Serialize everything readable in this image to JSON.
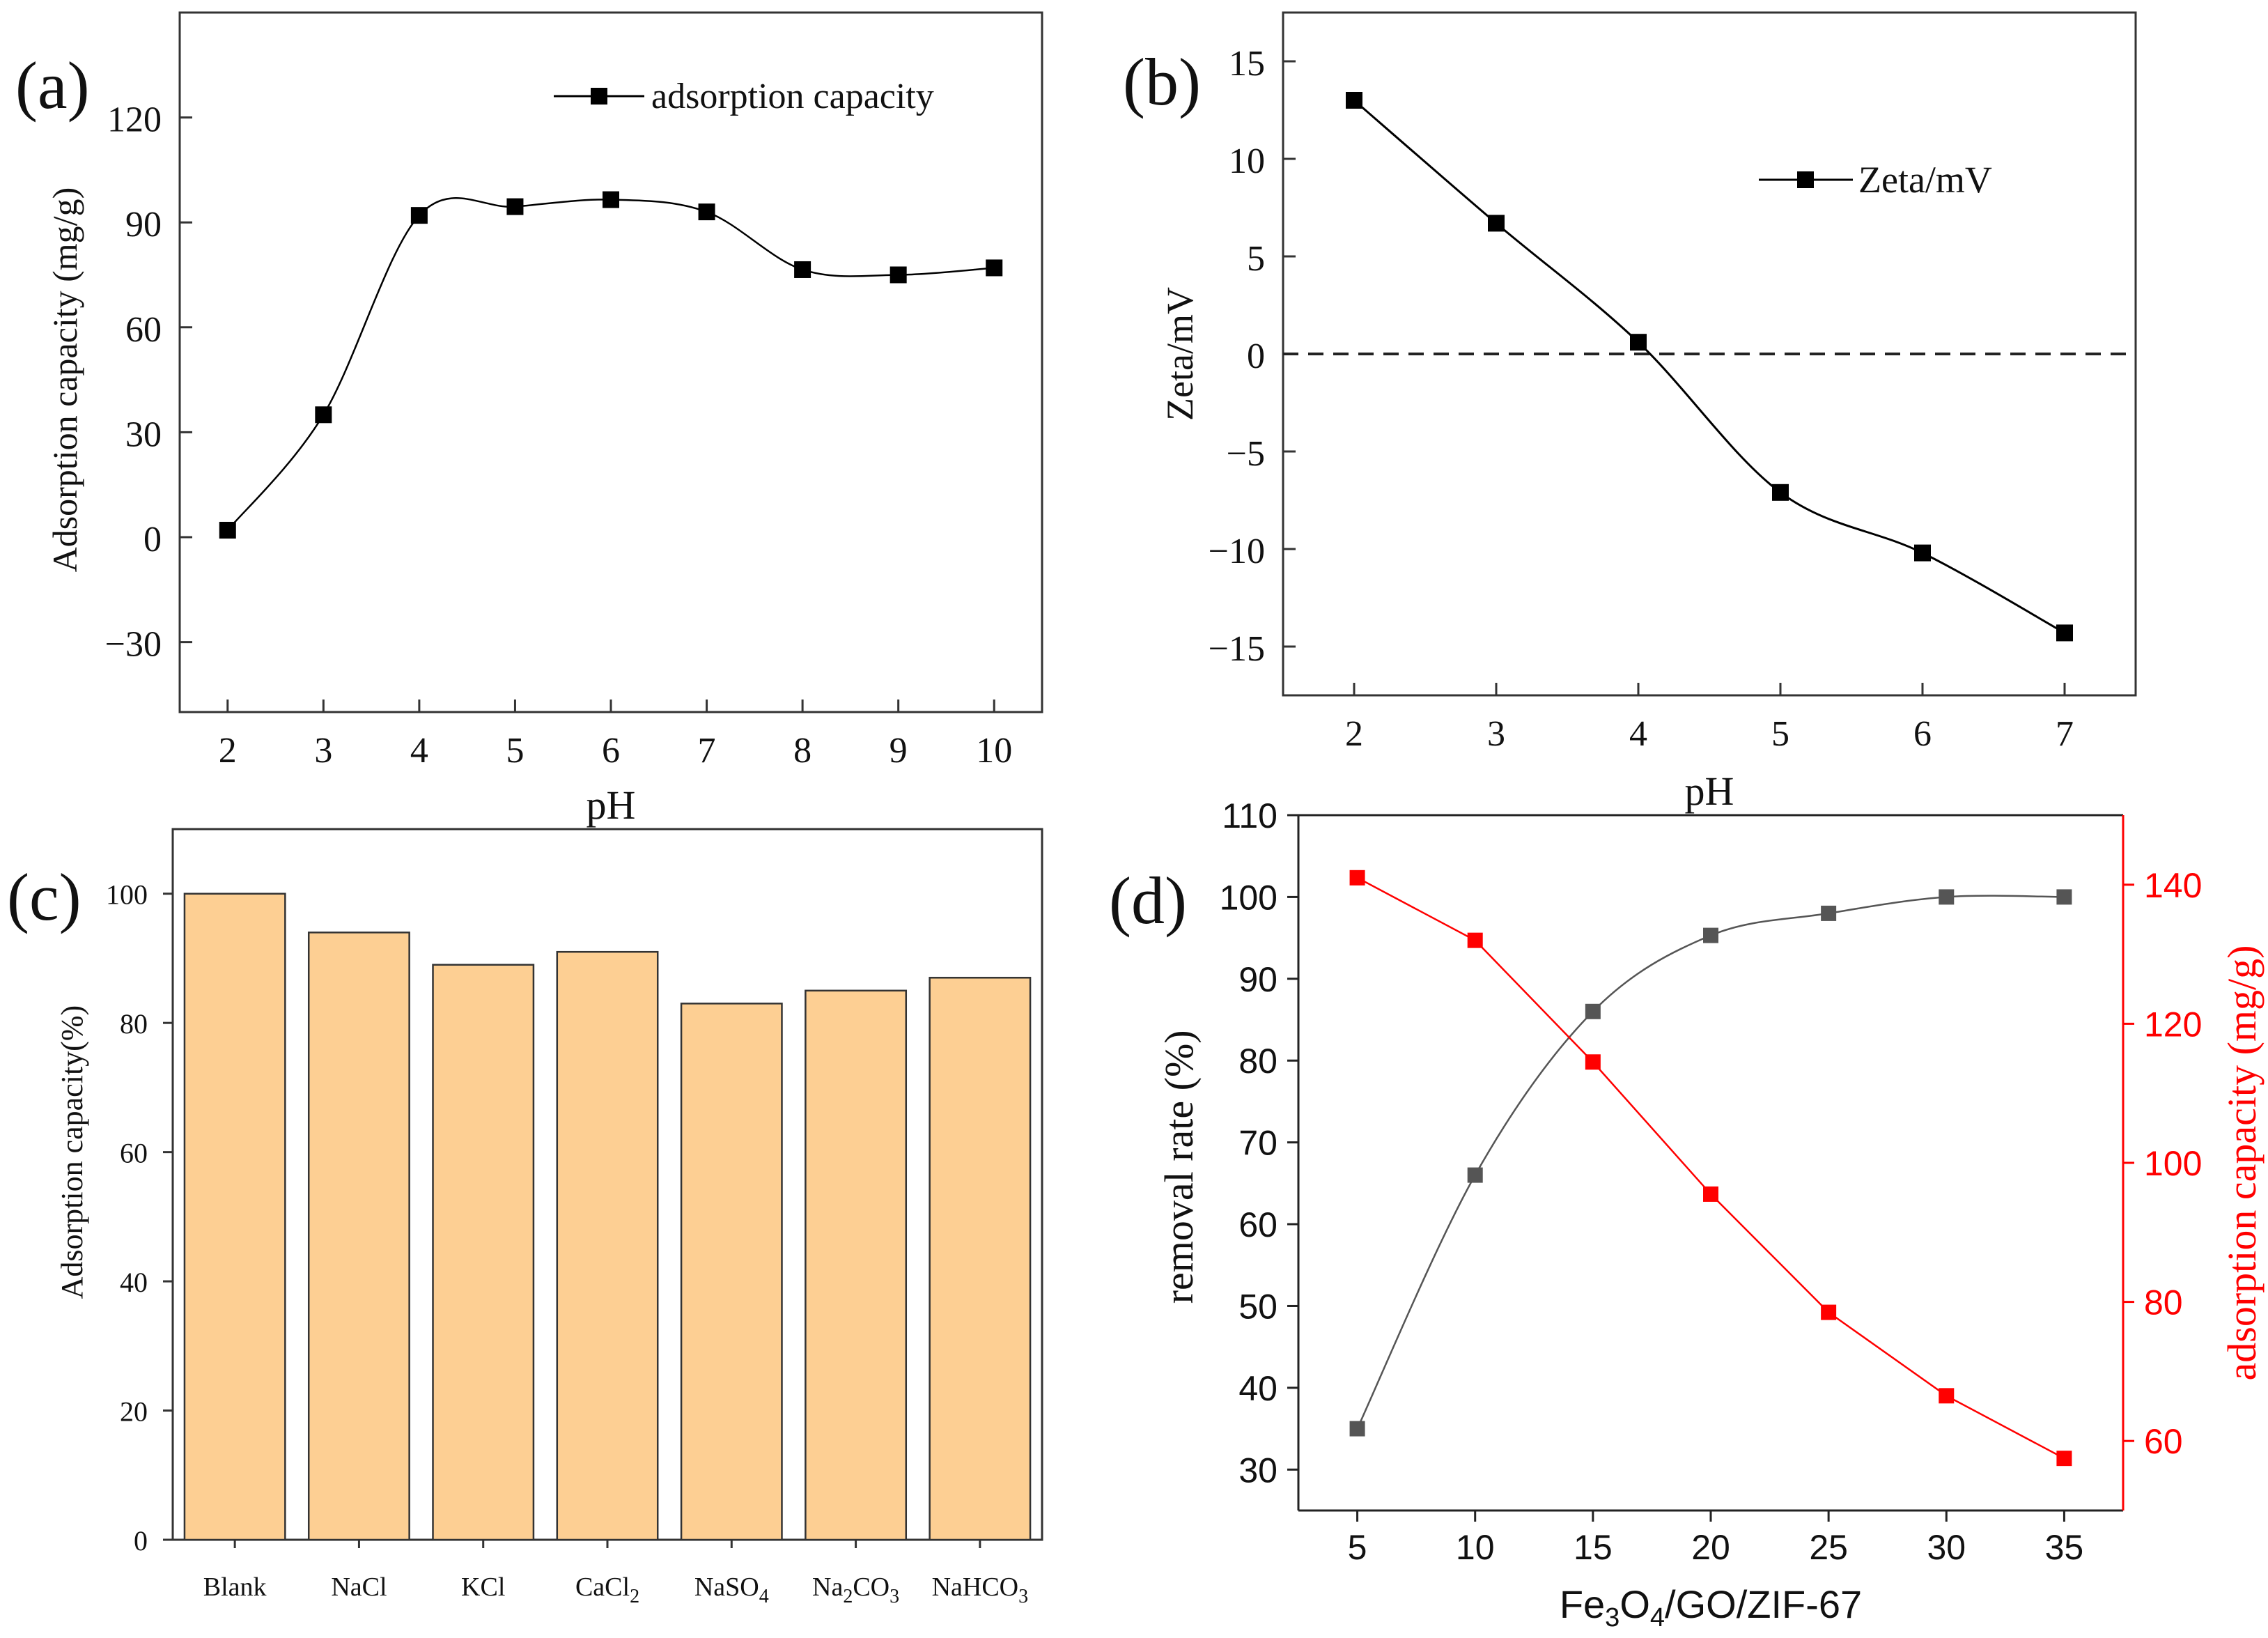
{
  "figure": {
    "panels": [
      "(a)",
      "(b)",
      "(c)",
      "(d)"
    ]
  },
  "chart_data": [
    {
      "id": "a",
      "type": "line",
      "panel_label": "(a)",
      "title": "",
      "xlabel": "pH",
      "ylabel": "Adsorption capacity (mg/g)",
      "x": [
        2,
        3,
        4,
        5,
        6,
        7,
        8,
        9,
        10
      ],
      "xticks": [
        "2",
        "3",
        "4",
        "5",
        "6",
        "7",
        "8",
        "9",
        "10"
      ],
      "ylim": [
        -50,
        150
      ],
      "yticks": [
        -30,
        0,
        30,
        60,
        90,
        120
      ],
      "series": [
        {
          "name": "adsorption capacity",
          "color": "#000000",
          "marker": "square",
          "values": [
            2,
            35,
            92,
            94.5,
            96.5,
            93,
            76.5,
            75,
            77
          ]
        }
      ],
      "legend": "top-right"
    },
    {
      "id": "b",
      "type": "line",
      "panel_label": "(b)",
      "title": "",
      "xlabel": "pH",
      "ylabel": "Zeta/mV",
      "x": [
        2,
        3,
        4,
        5,
        6,
        7
      ],
      "xticks": [
        "2",
        "3",
        "4",
        "5",
        "6",
        "7"
      ],
      "ylim": [
        -17.5,
        17.5
      ],
      "yticks": [
        -15,
        -10,
        -5,
        0,
        5,
        10,
        15
      ],
      "reference_line": {
        "y": 0,
        "style": "dashed"
      },
      "series": [
        {
          "name": "Zeta/mV",
          "color": "#000000",
          "marker": "square",
          "values": [
            13,
            6.7,
            0.6,
            -7.1,
            -10.2,
            -14.3
          ]
        }
      ],
      "legend": "top-right"
    },
    {
      "id": "c",
      "type": "bar",
      "panel_label": "(c)",
      "title": "",
      "xlabel": "",
      "ylabel": "Adsorption capacity(%)",
      "categories": [
        {
          "base": "Blank",
          "sub": "",
          "tail": ""
        },
        {
          "base": "NaCl",
          "sub": "",
          "tail": ""
        },
        {
          "base": "KCl",
          "sub": "",
          "tail": ""
        },
        {
          "base": "CaCl",
          "sub": "2",
          "tail": ""
        },
        {
          "base": "NaSO",
          "sub": "4",
          "tail": ""
        },
        {
          "base": "Na",
          "sub": "2",
          "tail": "CO",
          "sub2": "3"
        },
        {
          "base": "NaHCO",
          "sub": "3",
          "tail": ""
        }
      ],
      "values": [
        100,
        94,
        89,
        91,
        83,
        85,
        87
      ],
      "ylim": [
        0,
        110
      ],
      "yticks": [
        0,
        20,
        40,
        60,
        80,
        100
      ],
      "bar_color": "#fdcf93"
    },
    {
      "id": "d",
      "type": "line",
      "panel_label": "(d)",
      "title": "",
      "xlabel": {
        "base": "Fe",
        "sub1": "3",
        "mid": "O",
        "sub2": "4",
        "tail": "/GO/ZIF-67"
      },
      "ylabel": "removal rate (%)",
      "y2label": "adsorption capacity (mg/g)",
      "x": [
        5,
        10,
        15,
        20,
        25,
        30,
        35
      ],
      "xticks": [
        "5",
        "10",
        "15",
        "20",
        "25",
        "30",
        "35"
      ],
      "ylim": [
        25,
        110
      ],
      "yticks": [
        30,
        40,
        50,
        60,
        70,
        80,
        90,
        100,
        110
      ],
      "y2lim": [
        50,
        150
      ],
      "y2ticks": [
        60,
        80,
        100,
        120,
        140
      ],
      "series": [
        {
          "name": "removal rate",
          "axis": "left",
          "color": "#555555",
          "marker": "square",
          "smooth": true,
          "values": [
            35,
            66,
            86,
            95.3,
            98,
            100,
            100
          ]
        },
        {
          "name": "adsorption capacity",
          "axis": "right",
          "color": "#ff0000",
          "marker": "square",
          "smooth": false,
          "values": [
            141,
            132,
            114.5,
            95.5,
            78.5,
            66.5,
            57.5
          ]
        }
      ]
    }
  ]
}
